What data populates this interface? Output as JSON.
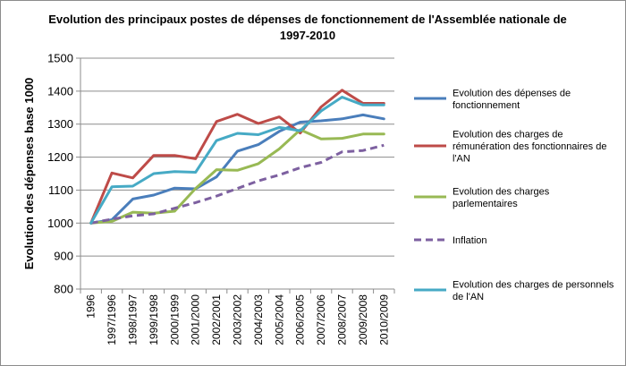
{
  "chart_data": {
    "type": "line",
    "title_lines": [
      "Evolution des principaux postes de dépenses de fonctionnement de l'Assemblée nationale de",
      "1997-2010"
    ],
    "xlabel": "",
    "ylabel": "Evolution des dépenses base 1000",
    "ylim": [
      800,
      1500
    ],
    "yticks": [
      "800",
      "900",
      "1000",
      "1100",
      "1200",
      "1300",
      "1400",
      "1500"
    ],
    "categories": [
      "1996",
      "1997/1996",
      "1998/1997",
      "1999/1998",
      "2000/1999",
      "2001/2000",
      "2002/2001",
      "2003/2002",
      "2004/2003",
      "2005/2004",
      "2006/2005",
      "2007/2006",
      "2008/2007",
      "2009/2008",
      "2010/2009"
    ],
    "grid": "horizontal",
    "legend_position": "right",
    "series": [
      {
        "name_lines": [
          "Evolution des dépenses de",
          "fonctionnement"
        ],
        "color": "#4a7ebb",
        "dash": false,
        "values": [
          1000,
          1010,
          1073,
          1085,
          1106,
          1104,
          1140,
          1218,
          1238,
          1278,
          1306,
          1310,
          1316,
          1328,
          1316
        ]
      },
      {
        "name_lines": [
          "Evolution des charges de",
          "rémunération des fonctionnaires de",
          "l'AN"
        ],
        "color": "#be4b48",
        "dash": false,
        "values": [
          1000,
          1152,
          1137,
          1205,
          1205,
          1195,
          1308,
          1330,
          1302,
          1322,
          1273,
          1352,
          1403,
          1363,
          1363
        ]
      },
      {
        "name_lines": [
          "Evolution des charges",
          "parlementaires"
        ],
        "color": "#98b954",
        "dash": false,
        "values": [
          1000,
          1005,
          1033,
          1030,
          1036,
          1105,
          1162,
          1160,
          1180,
          1225,
          1283,
          1255,
          1257,
          1270,
          1270
        ]
      },
      {
        "name_lines": [
          "Inflation"
        ],
        "color": "#7d60a0",
        "dash": true,
        "values": [
          1000,
          1012,
          1022,
          1028,
          1045,
          1062,
          1082,
          1105,
          1128,
          1146,
          1168,
          1184,
          1216,
          1220,
          1236
        ]
      },
      {
        "name_lines": [
          "Evolution des charges de personnels",
          "de l'AN"
        ],
        "color": "#46aac5",
        "dash": false,
        "values": [
          1000,
          1110,
          1112,
          1150,
          1156,
          1154,
          1250,
          1272,
          1268,
          1290,
          1280,
          1340,
          1382,
          1358,
          1358
        ]
      }
    ]
  }
}
